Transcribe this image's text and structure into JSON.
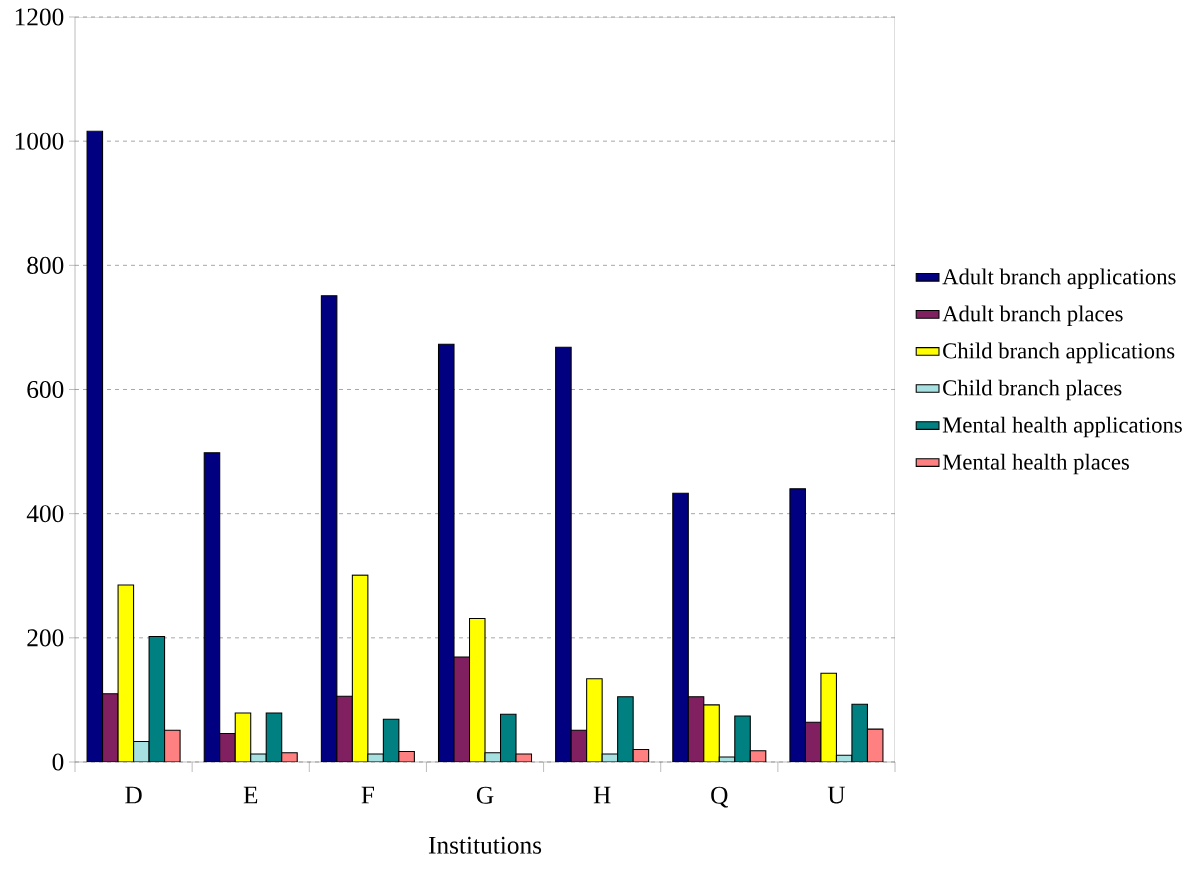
{
  "chart_data": {
    "type": "bar",
    "xlabel": "Institutions",
    "categories": [
      "D",
      "E",
      "F",
      "G",
      "H",
      "Q",
      "U"
    ],
    "series": [
      {
        "name": "Adult branch applications",
        "color": "#000080",
        "values": [
          1016,
          498,
          751,
          673,
          668,
          433,
          440
        ]
      },
      {
        "name": "Adult branch places",
        "color": "#802060",
        "values": [
          110,
          46,
          106,
          169,
          51,
          105,
          64
        ]
      },
      {
        "name": "Child branch applications",
        "color": "#ffff00",
        "values": [
          285,
          79,
          301,
          231,
          134,
          92,
          143
        ]
      },
      {
        "name": "Child branch places",
        "color": "#a6e0e0",
        "values": [
          33,
          13,
          13,
          15,
          13,
          8,
          11
        ]
      },
      {
        "name": "Mental health applications",
        "color": "#008080",
        "values": [
          202,
          79,
          69,
          77,
          105,
          74,
          93
        ]
      },
      {
        "name": "Mental health places",
        "color": "#ff8080",
        "values": [
          51,
          15,
          17,
          13,
          20,
          18,
          53
        ]
      }
    ],
    "ylim": [
      0,
      1200
    ],
    "yticks": [
      0,
      200,
      400,
      600,
      800,
      1000,
      1200
    ],
    "grid": "y",
    "legend": "right"
  }
}
